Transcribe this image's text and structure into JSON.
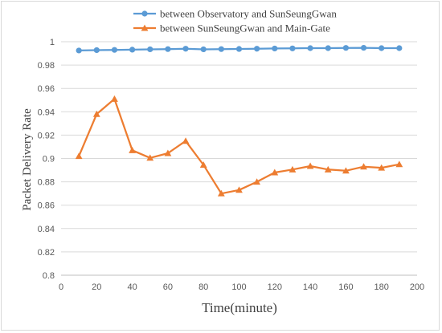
{
  "chart_data": {
    "type": "line",
    "xlabel": "Time(minute)",
    "ylabel": "Packet Delivery Rate",
    "xlim": [
      0,
      200
    ],
    "ylim": [
      0.8,
      1.0
    ],
    "x_ticks": [
      "0",
      "20",
      "40",
      "60",
      "80",
      "100",
      "120",
      "140",
      "160",
      "180",
      "200"
    ],
    "y_ticks": [
      "0.8",
      "0.82",
      "0.84",
      "0.86",
      "0.88",
      "0.9",
      "0.92",
      "0.94",
      "0.96",
      "0.98",
      "1"
    ],
    "grid": "horizontal",
    "legend_position": "top",
    "x": [
      10,
      20,
      30,
      40,
      50,
      60,
      70,
      80,
      90,
      100,
      110,
      120,
      130,
      140,
      150,
      160,
      170,
      180,
      190
    ],
    "series": [
      {
        "name": "between Observatory and SunSeungGwan",
        "color": "#5b9bd5",
        "marker": "circle",
        "values": [
          0.9925,
          0.9928,
          0.993,
          0.9932,
          0.9935,
          0.9937,
          0.994,
          0.9935,
          0.9937,
          0.9938,
          0.994,
          0.9942,
          0.9943,
          0.9945,
          0.9945,
          0.9947,
          0.9948,
          0.9945,
          0.9945
        ]
      },
      {
        "name": "between SunSeungGwan and Main-Gate",
        "color": "#ed7d31",
        "marker": "triangle",
        "values": [
          0.902,
          0.938,
          0.951,
          0.907,
          0.9005,
          0.9045,
          0.915,
          0.8945,
          0.87,
          0.873,
          0.88,
          0.888,
          0.8905,
          0.8935,
          0.8905,
          0.8895,
          0.893,
          0.892,
          0.895
        ]
      }
    ]
  }
}
